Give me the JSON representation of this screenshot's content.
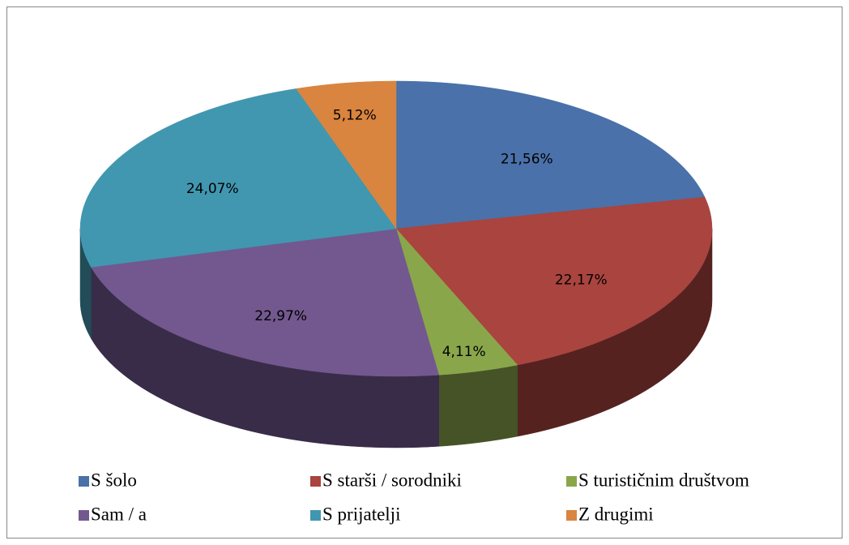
{
  "chart_data": {
    "type": "pie",
    "categories": [
      "S šolo",
      "S starši / sorodniki",
      "S turističnim društvom",
      "Sam / a",
      "S prijatelji",
      "Z drugimi"
    ],
    "values": [
      21.56,
      22.17,
      4.11,
      22.97,
      24.07,
      5.12
    ],
    "value_labels": [
      "21,56%",
      "22,17%",
      "4,11%",
      "22,97%",
      "24,07%",
      "5,12%"
    ],
    "colors": [
      "#4a71a9",
      "#a9443f",
      "#8aa64b",
      "#72588f",
      "#4197b0",
      "#d9843f"
    ],
    "legend": "bottom"
  }
}
